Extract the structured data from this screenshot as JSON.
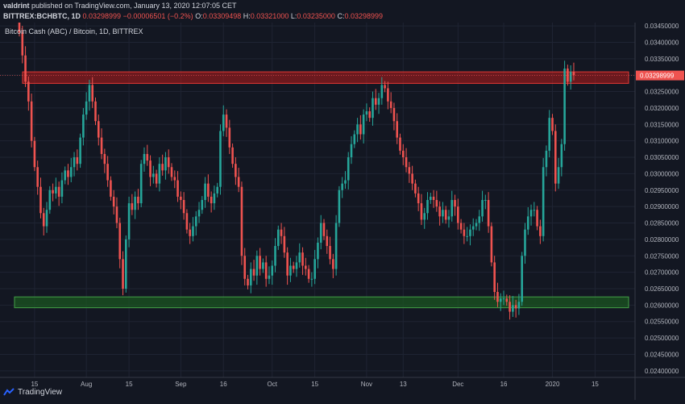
{
  "header": {
    "author": "valdrint",
    "published_text": "published on TradingView.com, January 13, 2020 12:07:05 CET",
    "symbol": "BITTREX:BCHBTC, 1D",
    "last_price": "0.03298999",
    "change": "−0.00006501 (−0.2%)",
    "o_label": "O:",
    "o_value": "0.03309498",
    "h_label": "H:",
    "h_value": "0.03321000",
    "l_label": "L:",
    "l_value": "0.03235000",
    "c_label": "C:",
    "c_value": "0.03298999"
  },
  "footer": {
    "brand": "TradingView"
  },
  "colors": {
    "up": "#26a69a",
    "down": "#ef5350",
    "background": "#131722",
    "grid": "#1f2433",
    "resistance_fill": "#b71c1c",
    "support_fill": "#1b5e20"
  },
  "chart_data": {
    "type": "candlestick",
    "title": "Bitcoin Cash (ABC) / Bitcoin, 1D, BITTREX",
    "ylim": [
      0.0238,
      0.0346
    ],
    "y_ticks": [
      "0.03450000",
      "0.03400000",
      "0.03350000",
      "0.03300000",
      "0.03250000",
      "0.03200000",
      "0.03150000",
      "0.03100000",
      "0.03050000",
      "0.03000000",
      "0.02950000",
      "0.02900000",
      "0.02850000",
      "0.02800000",
      "0.02750000",
      "0.02700000",
      "0.02650000",
      "0.02600000",
      "0.02550000",
      "0.02500000",
      "0.02450000",
      "0.02400000"
    ],
    "x_labels": [
      {
        "day": 5,
        "label": "15"
      },
      {
        "day": 22,
        "label": "Aug"
      },
      {
        "day": 36,
        "label": "15"
      },
      {
        "day": 53,
        "label": "Sep"
      },
      {
        "day": 67,
        "label": "16"
      },
      {
        "day": 83,
        "label": "Oct"
      },
      {
        "day": 97,
        "label": "15"
      },
      {
        "day": 114,
        "label": "Nov"
      },
      {
        "day": 126,
        "label": "13"
      },
      {
        "day": 144,
        "label": "Dec"
      },
      {
        "day": 159,
        "label": "16"
      },
      {
        "day": 175,
        "label": "2020"
      },
      {
        "day": 189,
        "label": "15"
      }
    ],
    "current_price_label": "0.03298999",
    "current_price": 0.03298999,
    "resistance_zone": [
      0.03275,
      0.0331
    ],
    "support_zone": [
      0.02592,
      0.02625
    ],
    "series": [
      {
        "name": "BCHBTC",
        "closes": [
          0.0343,
          0.0336,
          0.0328,
          0.0322,
          0.031,
          0.0302,
          0.0296,
          0.0288,
          0.0284,
          0.0289,
          0.0295,
          0.0294,
          0.0296,
          0.0293,
          0.0298,
          0.0301,
          0.0299,
          0.0302,
          0.0305,
          0.0303,
          0.0311,
          0.0318,
          0.0322,
          0.0327,
          0.0322,
          0.0316,
          0.0311,
          0.0306,
          0.0303,
          0.0298,
          0.0293,
          0.029,
          0.0285,
          0.0274,
          0.0265,
          0.028,
          0.0291,
          0.0289,
          0.0293,
          0.0291,
          0.0303,
          0.0306,
          0.0304,
          0.0299,
          0.03,
          0.0297,
          0.0303,
          0.0301,
          0.0305,
          0.0302,
          0.0299,
          0.0298,
          0.0293,
          0.0292,
          0.0288,
          0.0283,
          0.0281,
          0.0284,
          0.0287,
          0.0289,
          0.0292,
          0.0297,
          0.0293,
          0.0291,
          0.0294,
          0.0296,
          0.0313,
          0.0318,
          0.0314,
          0.0308,
          0.0303,
          0.0299,
          0.0296,
          0.0275,
          0.0268,
          0.0266,
          0.0271,
          0.0269,
          0.0275,
          0.0271,
          0.0273,
          0.0268,
          0.0269,
          0.0272,
          0.0278,
          0.0283,
          0.0281,
          0.0276,
          0.0269,
          0.0272,
          0.0271,
          0.0273,
          0.0276,
          0.0272,
          0.0271,
          0.0268,
          0.0268,
          0.0274,
          0.0279,
          0.0285,
          0.0281,
          0.0278,
          0.0274,
          0.0271,
          0.0285,
          0.0295,
          0.0297,
          0.0298,
          0.0305,
          0.0309,
          0.0312,
          0.0315,
          0.0312,
          0.0318,
          0.0319,
          0.0317,
          0.0323,
          0.0321,
          0.0323,
          0.0327,
          0.0326,
          0.0322,
          0.032,
          0.0316,
          0.0311,
          0.0307,
          0.0305,
          0.0302,
          0.03,
          0.0297,
          0.0294,
          0.0291,
          0.0286,
          0.0288,
          0.0292,
          0.0293,
          0.0292,
          0.029,
          0.0287,
          0.0289,
          0.0286,
          0.0287,
          0.0292,
          0.029,
          0.0285,
          0.0283,
          0.0281,
          0.0281,
          0.0283,
          0.0284,
          0.0285,
          0.0287,
          0.0292,
          0.0292,
          0.0284,
          0.0273,
          0.0264,
          0.0261,
          0.0262,
          0.0262,
          0.0261,
          0.0258,
          0.026,
          0.0259,
          0.0261,
          0.0275,
          0.0283,
          0.0287,
          0.0289,
          0.0289,
          0.0284,
          0.0281,
          0.0302,
          0.0307,
          0.0317,
          0.0313,
          0.0297,
          0.0302,
          0.0309,
          0.0332,
          0.0328,
          0.0331,
          0.033
        ]
      }
    ]
  }
}
